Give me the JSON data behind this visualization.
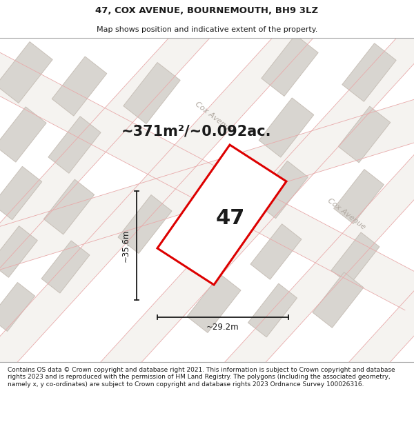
{
  "title": "47, COX AVENUE, BOURNEMOUTH, BH9 3LZ",
  "subtitle": "Map shows position and indicative extent of the property.",
  "footer": "Contains OS data © Crown copyright and database right 2021. This information is subject to Crown copyright and database rights 2023 and is reproduced with the permission of HM Land Registry. The polygons (including the associated geometry, namely x, y co-ordinates) are subject to Crown copyright and database rights 2023 Ordnance Survey 100026316.",
  "area_label": "~371m²/~0.092ac.",
  "property_number": "47",
  "dim_width": "~29.2m",
  "dim_height": "~35.6m",
  "street_label_top": "Cox Avenue",
  "street_label_right": "Cox Avenue",
  "bg_color": "#eeece8",
  "plot_outline_color": "#dd0000",
  "plot_fill_color": "#ffffff",
  "building_fill": "#d8d5d0",
  "building_outline": "#c8c0b8",
  "road_fill": "#f5f3f0",
  "pink_line_color": "#e8aaaa",
  "gray_line_color": "#c0b8b0",
  "street_label_color": "#b0a8a0",
  "dim_line_color": "#1a1a1a",
  "title_fontsize": 9.5,
  "subtitle_fontsize": 8,
  "area_fontsize": 15,
  "number_fontsize": 22,
  "street_fontsize": 8,
  "dim_fontsize": 8.5,
  "footer_fontsize": 6.5
}
